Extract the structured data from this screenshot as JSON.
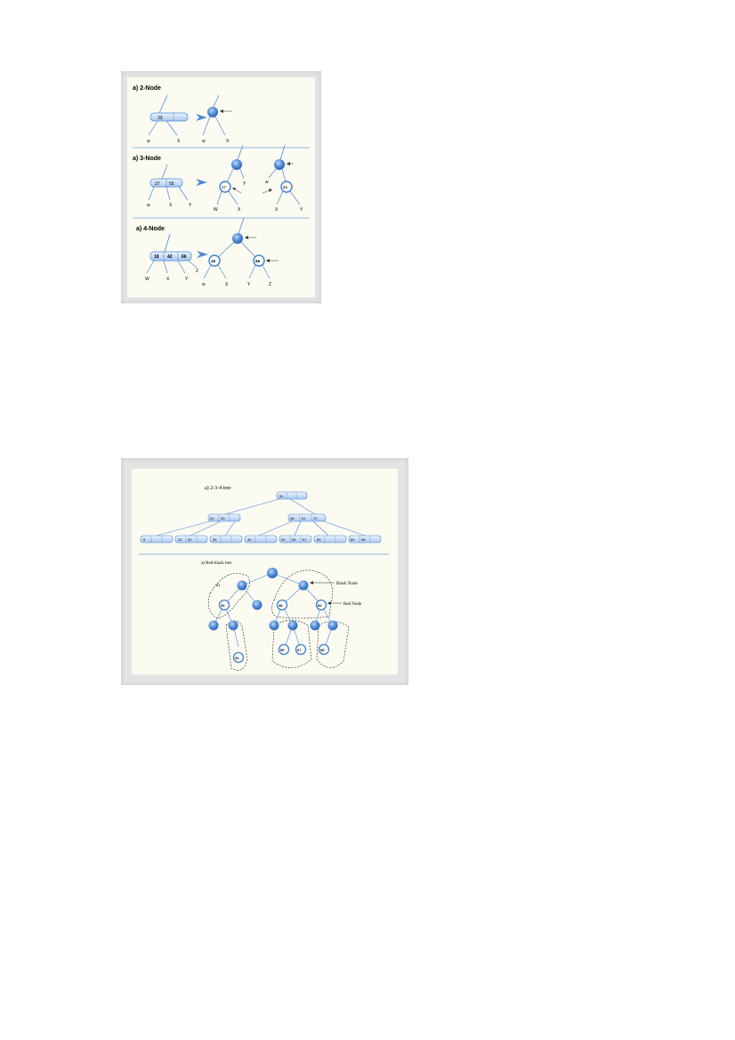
{
  "figure1": {
    "sections": [
      {
        "heading": "a) 2-Node",
        "key_node_keys": [
          "33"
        ],
        "node_labels": [
          "w",
          "X",
          "w",
          "X"
        ]
      },
      {
        "heading": "a) 3-Node",
        "key_node_keys": [
          "27",
          "55"
        ],
        "node_labels": [
          "w",
          "X",
          "Y",
          "Y",
          "W",
          "X",
          "w",
          "X",
          "Y"
        ],
        "circle_keys": [
          "27",
          "55"
        ]
      },
      {
        "heading": "a) 4-Node",
        "key_node_keys": [
          "18",
          "42",
          "66"
        ],
        "node_labels": [
          "W",
          "X",
          "Y",
          "Z",
          "w",
          "X",
          "Y",
          "Z"
        ],
        "circle_keys": [
          "18",
          "66"
        ]
      }
    ]
  },
  "figure2": {
    "top_heading": "a) 2-3-4 tree",
    "bottom_heading": "a) Red-black tree",
    "root_keys": [
      "51",
      ""
    ],
    "level2_keys": [
      [
        "20",
        "33"
      ],
      [
        "48",
        "61",
        "72"
      ]
    ],
    "leaf_keys": [
      [
        "5"
      ],
      [
        "22",
        "30"
      ],
      [
        "35"
      ],
      [
        "40"
      ],
      [
        "53",
        "55",
        "57"
      ],
      [
        "65"
      ],
      [
        "84",
        "96"
      ]
    ],
    "callouts": [
      "Black Node",
      "Red Node"
    ],
    "rb_labels": [
      "30",
      "48",
      "82",
      "33",
      "59",
      "67",
      "68"
    ],
    "side_label": "a)"
  },
  "colors": {
    "line": "#4a88d8",
    "node_fill": "#3f7fd0",
    "bar_fill": "#cfe0f6",
    "red_ring": "#3f7fd0"
  }
}
